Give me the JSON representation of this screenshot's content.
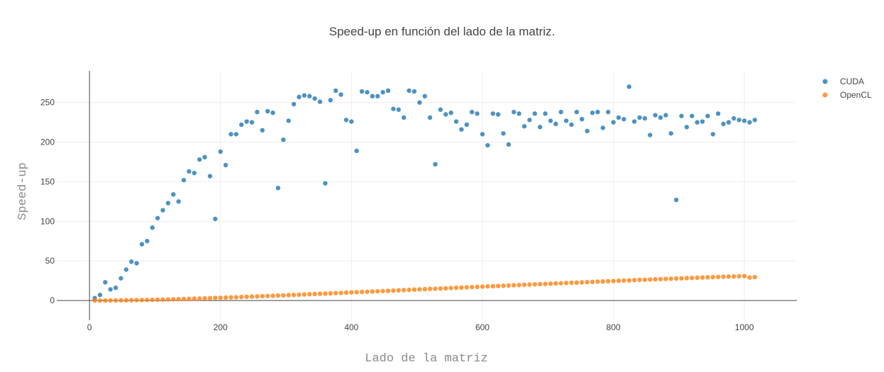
{
  "chart_data": {
    "type": "scatter",
    "title": "Speed-up en función del lado de la matriz.",
    "xlabel": "Lado de la matriz",
    "ylabel": "Speed-up",
    "xlim": [
      -50,
      1080
    ],
    "ylim": [
      -25,
      290
    ],
    "x_ticks": [
      0,
      200,
      400,
      600,
      800,
      1000
    ],
    "y_ticks": [
      0,
      50,
      100,
      150,
      200,
      250
    ],
    "grid": true,
    "legend_position": "top-right",
    "series": [
      {
        "name": "CUDA",
        "color": "#1f77b4",
        "x": [
          8,
          16,
          24,
          32,
          40,
          48,
          56,
          64,
          72,
          80,
          88,
          96,
          104,
          112,
          120,
          128,
          136,
          144,
          152,
          160,
          168,
          176,
          184,
          192,
          200,
          208,
          216,
          224,
          232,
          240,
          248,
          256,
          264,
          272,
          280,
          288,
          296,
          304,
          312,
          320,
          328,
          336,
          344,
          352,
          360,
          368,
          376,
          384,
          392,
          400,
          408,
          416,
          424,
          432,
          440,
          448,
          456,
          464,
          472,
          480,
          488,
          496,
          504,
          512,
          520,
          528,
          536,
          544,
          552,
          560,
          568,
          576,
          584,
          592,
          600,
          608,
          616,
          624,
          632,
          640,
          648,
          656,
          664,
          672,
          680,
          688,
          696,
          704,
          712,
          720,
          728,
          736,
          744,
          752,
          760,
          768,
          776,
          784,
          792,
          800,
          808,
          816,
          824,
          832,
          840,
          848,
          856,
          864,
          872,
          880,
          888,
          896,
          904,
          912,
          920,
          928,
          936,
          944,
          952,
          960,
          968,
          976,
          984,
          992,
          1000,
          1008,
          1016
        ],
        "y": [
          3,
          7,
          23,
          14,
          16,
          28,
          39,
          49,
          47,
          71,
          75,
          92,
          104,
          114,
          123,
          134,
          125,
          152,
          163,
          161,
          178,
          181,
          157,
          103,
          188,
          171,
          210,
          210,
          222,
          226,
          225,
          238,
          215,
          239,
          237,
          142,
          203,
          227,
          248,
          257,
          259,
          258,
          255,
          251,
          148,
          253,
          265,
          260,
          228,
          226,
          189,
          264,
          263,
          258,
          258,
          263,
          265,
          242,
          241,
          231,
          265,
          264,
          250,
          258,
          231,
          172,
          241,
          235,
          237,
          226,
          216,
          222,
          238,
          236,
          210,
          196,
          236,
          235,
          211,
          197,
          238,
          236,
          220,
          228,
          236,
          219,
          236,
          227,
          223,
          238,
          227,
          222,
          238,
          229,
          214,
          237,
          238,
          218,
          238,
          225,
          231,
          229,
          270,
          226,
          231,
          230,
          209,
          234,
          231,
          234,
          211,
          127,
          233,
          219,
          233,
          225,
          226,
          233,
          210,
          236,
          223,
          225,
          230,
          228,
          227,
          225,
          228
        ]
      },
      {
        "name": "OpenCL",
        "color": "#ff7f0e",
        "x": [
          8,
          16,
          24,
          32,
          40,
          48,
          56,
          64,
          72,
          80,
          88,
          96,
          104,
          112,
          120,
          128,
          136,
          144,
          152,
          160,
          168,
          176,
          184,
          192,
          200,
          208,
          216,
          224,
          232,
          240,
          248,
          256,
          264,
          272,
          280,
          288,
          296,
          304,
          312,
          320,
          328,
          336,
          344,
          352,
          360,
          368,
          376,
          384,
          392,
          400,
          408,
          416,
          424,
          432,
          440,
          448,
          456,
          464,
          472,
          480,
          488,
          496,
          504,
          512,
          520,
          528,
          536,
          544,
          552,
          560,
          568,
          576,
          584,
          592,
          600,
          608,
          616,
          624,
          632,
          640,
          648,
          656,
          664,
          672,
          680,
          688,
          696,
          704,
          712,
          720,
          728,
          736,
          744,
          752,
          760,
          768,
          776,
          784,
          792,
          800,
          808,
          816,
          824,
          832,
          840,
          848,
          856,
          864,
          872,
          880,
          888,
          896,
          904,
          912,
          920,
          928,
          936,
          944,
          952,
          960,
          968,
          976,
          984,
          992,
          1000,
          1008,
          1016
        ],
        "y": [
          0,
          0,
          0,
          0.1,
          0.1,
          0.2,
          0.3,
          0.4,
          0.5,
          0.6,
          0.7,
          0.9,
          1.0,
          1.2,
          1.3,
          1.5,
          1.7,
          1.9,
          2.1,
          2.3,
          2.5,
          2.7,
          2.9,
          3.2,
          3.4,
          3.6,
          3.9,
          4.1,
          4.4,
          4.6,
          4.9,
          5.1,
          5.4,
          5.7,
          5.9,
          6.2,
          6.5,
          6.8,
          7.0,
          7.3,
          7.6,
          7.9,
          8.2,
          8.5,
          8.7,
          9.0,
          9.3,
          9.6,
          9.9,
          10.2,
          10.5,
          10.8,
          11.0,
          11.3,
          11.6,
          11.9,
          12.2,
          12.5,
          12.8,
          13.1,
          13.4,
          13.7,
          14.0,
          14.3,
          14.6,
          14.8,
          15.1,
          15.4,
          15.7,
          16.0,
          16.3,
          16.6,
          16.9,
          17.2,
          17.5,
          17.8,
          18.0,
          18.3,
          18.6,
          18.9,
          19.2,
          19.5,
          19.8,
          20.1,
          20.4,
          20.6,
          20.9,
          21.2,
          21.5,
          21.8,
          22.1,
          22.4,
          22.6,
          22.9,
          23.2,
          23.5,
          23.8,
          24.0,
          24.3,
          24.6,
          24.9,
          25.2,
          25.4,
          25.7,
          26.0,
          26.2,
          26.5,
          26.8,
          27.0,
          27.3,
          27.5,
          27.8,
          28.0,
          28.3,
          28.5,
          28.8,
          29.0,
          29.3,
          29.5,
          29.7,
          30.0,
          30.2,
          30.4,
          30.6,
          30.8,
          29.0,
          29.5
        ]
      }
    ]
  }
}
